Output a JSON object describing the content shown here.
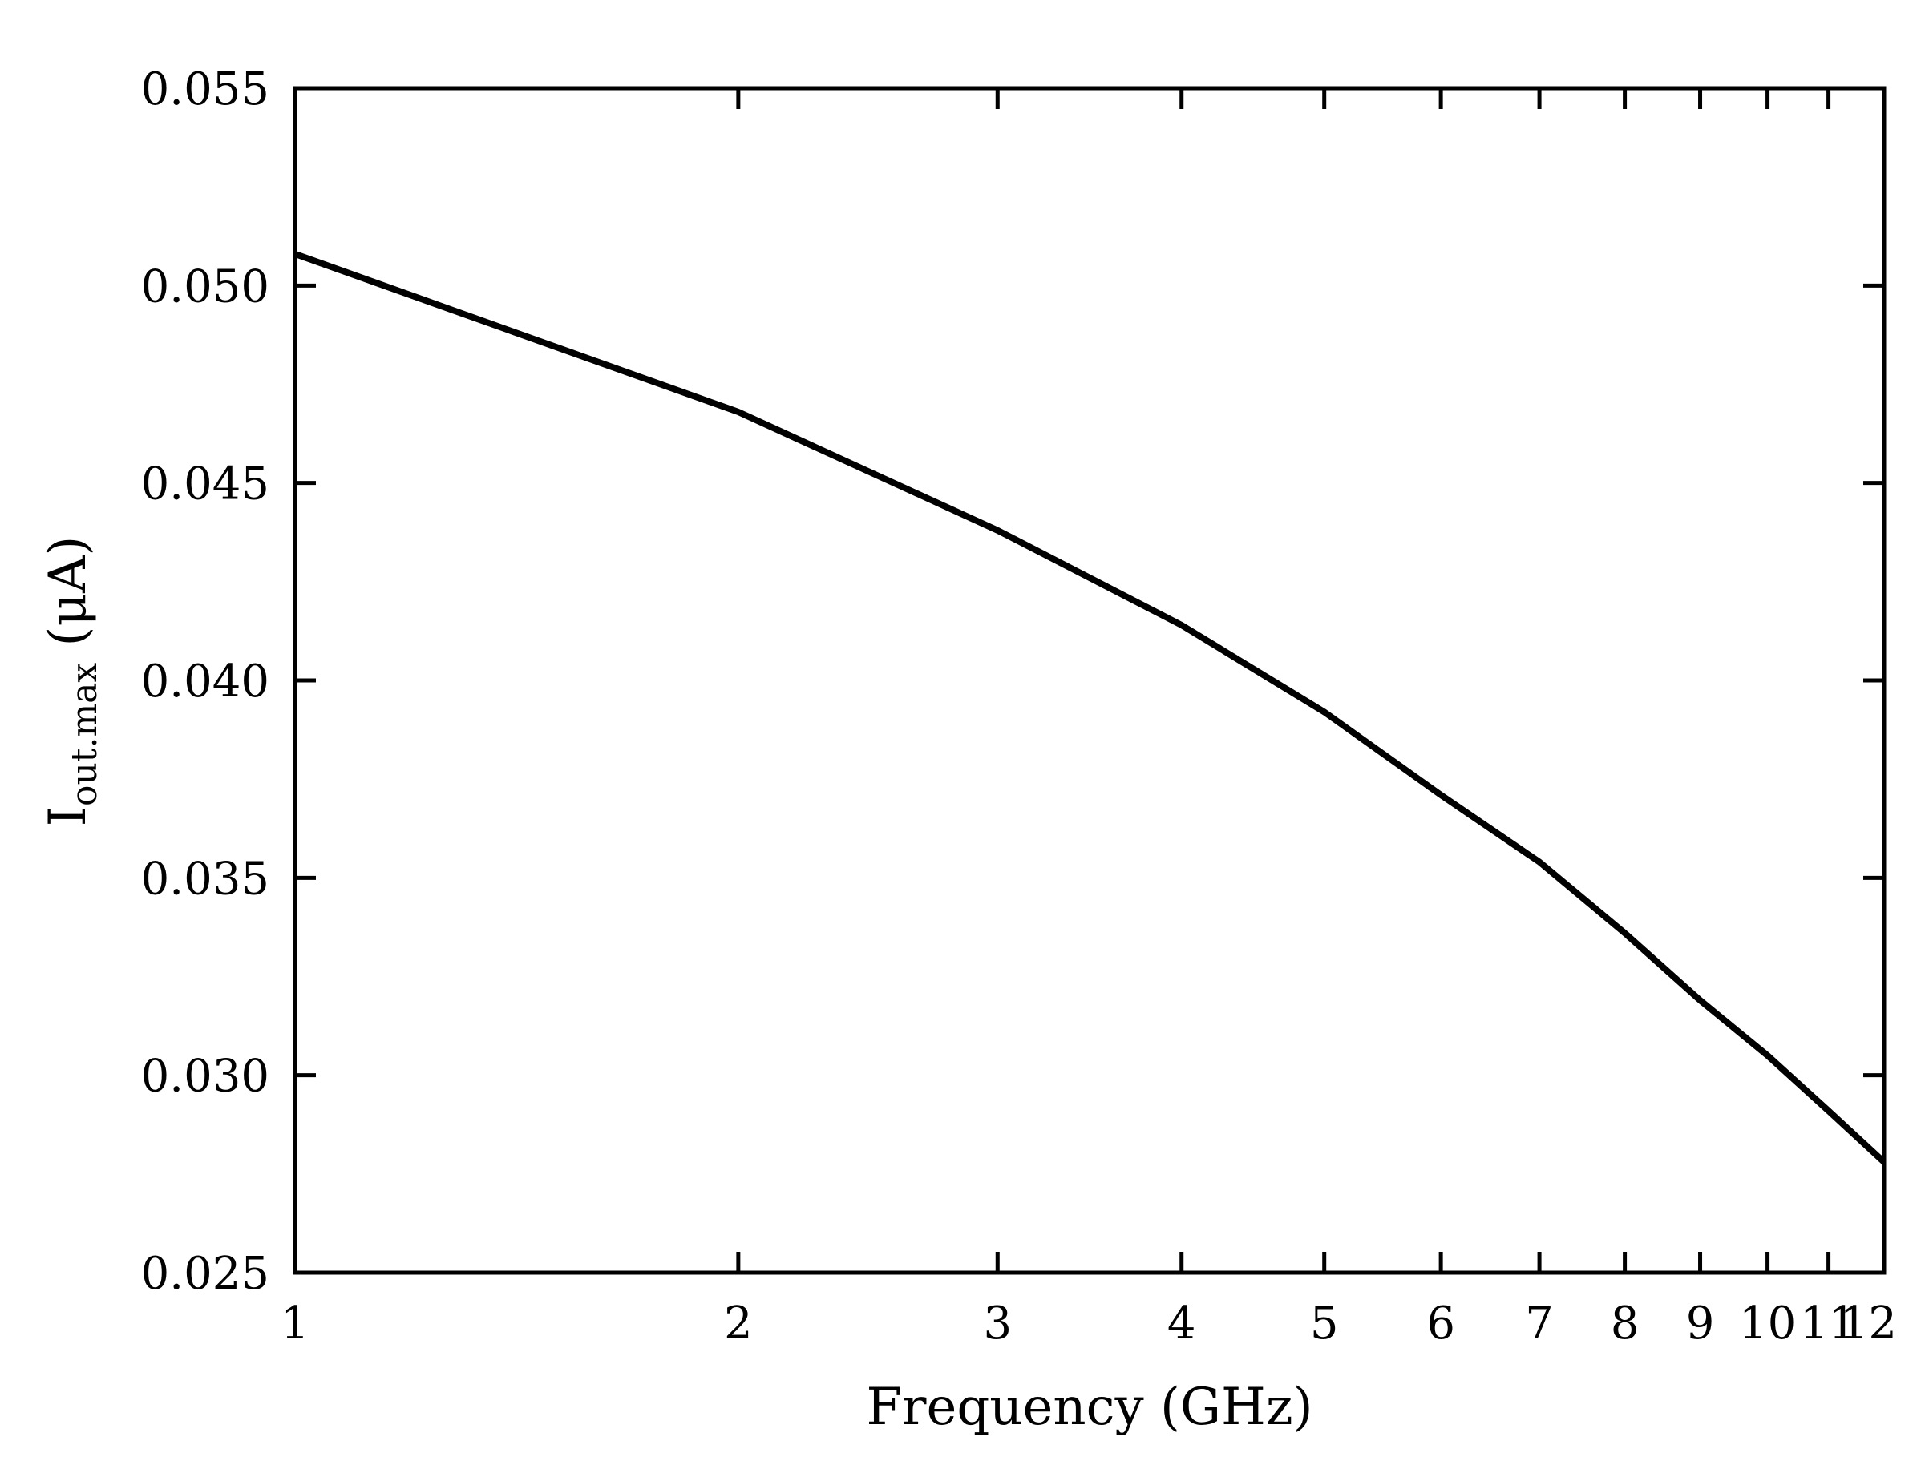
{
  "chart_data": {
    "type": "line",
    "xlabel": "Frequency (GHz)",
    "ylabel": {
      "main": "I",
      "subscript": "out.max",
      "unit": " (μA)"
    },
    "x_scale": "log",
    "xlim": [
      1,
      12
    ],
    "ylim": [
      0.025,
      0.055
    ],
    "x_ticks": [
      1,
      2,
      3,
      4,
      5,
      6,
      7,
      8,
      9,
      10,
      11,
      12
    ],
    "x_tick_labels": [
      "1",
      "2",
      "3",
      "4",
      "5",
      "6",
      "7",
      "8",
      "9",
      "10",
      "11",
      "12"
    ],
    "y_ticks": [
      0.025,
      0.03,
      0.035,
      0.04,
      0.045,
      0.05,
      0.055
    ],
    "y_tick_labels": [
      "0.025",
      "0.030",
      "0.035",
      "0.040",
      "0.045",
      "0.050",
      "0.055"
    ],
    "grid": false,
    "legend": "none",
    "series": [
      {
        "color": "#000000",
        "x": [
          1,
          2,
          3,
          4,
          5,
          6,
          7,
          8,
          9,
          10,
          11,
          12
        ],
        "y": [
          0.0508,
          0.0468,
          0.0438,
          0.0414,
          0.0392,
          0.0371,
          0.0354,
          0.0336,
          0.0319,
          0.0305,
          0.0291,
          0.0278
        ]
      }
    ]
  }
}
